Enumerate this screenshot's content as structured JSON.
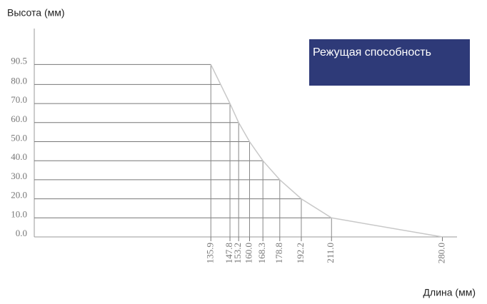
{
  "chart_data": {
    "type": "line",
    "title": "Высота (мм)",
    "x_label": "Длина (мм)",
    "legend_text": "Режущая способность",
    "x": [
      135.9,
      147.8,
      153.2,
      160.0,
      168.3,
      178.8,
      192.2,
      211.0,
      280.0
    ],
    "series": [
      {
        "name": "Режущая способность",
        "color": "#c8c8c8",
        "values": [
          90.5,
          70.0,
          60.0,
          50.0,
          40.0,
          30.0,
          20.0,
          10.0,
          0.0
        ]
      }
    ],
    "xlim": [
      26,
      298
    ],
    "ylim": [
      0,
      100
    ],
    "xticks": [
      135.9,
      147.8,
      153.2,
      {
        "value": 160.0,
        "label": "160.0"
      },
      168.3,
      178.8,
      192.2,
      {
        "value": 211.0,
        "label": "211.0"
      },
      {
        "value": 280.0,
        "label": "280.0"
      }
    ],
    "yticks": [
      {
        "value": 0,
        "label": "0.0"
      },
      {
        "value": 10,
        "label": "10.0"
      },
      {
        "value": 20,
        "label": "20.0"
      },
      {
        "value": 30,
        "label": "30.0"
      },
      {
        "value": 40,
        "label": "40.0"
      },
      {
        "value": 50,
        "label": "50.0"
      },
      {
        "value": 60,
        "label": "60.0"
      },
      {
        "value": 70,
        "label": "70.0"
      },
      {
        "value": 80,
        "label": "80.0"
      },
      90.5
    ],
    "legend_color": "#2e3a78"
  }
}
